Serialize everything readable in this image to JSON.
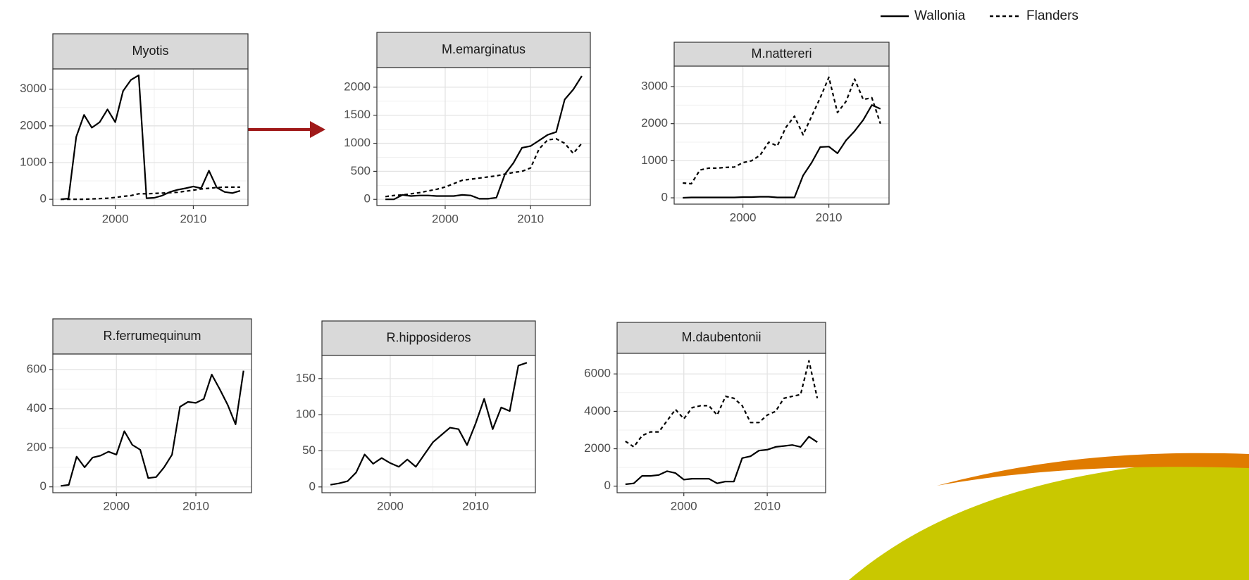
{
  "chart_data": [
    {
      "type": "line",
      "title": "Myotis",
      "x": [
        1993,
        1994,
        1995,
        1996,
        1997,
        1998,
        1999,
        2000,
        2001,
        2002,
        2003,
        2004,
        2005,
        2006,
        2007,
        2008,
        2009,
        2010,
        2011,
        2012,
        2013,
        2014,
        2015,
        2016
      ],
      "xlim": [
        1992,
        2017
      ],
      "xticks": [
        2000,
        2010
      ],
      "ylim": [
        -170,
        3550
      ],
      "yticks": [
        0,
        1000,
        2000,
        3000
      ],
      "grid": true,
      "series": [
        {
          "name": "Wallonia",
          "color": "#000000",
          "dash": "solid",
          "values": [
            0,
            20,
            1700,
            2300,
            1950,
            2100,
            2450,
            2100,
            2950,
            3250,
            3380,
            30,
            40,
            100,
            200,
            260,
            300,
            350,
            300,
            780,
            320,
            200,
            170,
            230
          ]
        },
        {
          "name": "Flanders",
          "color": "#000000",
          "dash": "dashed",
          "values": [
            0,
            0,
            0,
            0,
            10,
            20,
            30,
            50,
            80,
            100,
            150,
            150,
            160,
            170,
            180,
            190,
            220,
            250,
            280,
            300,
            320,
            330,
            330,
            330
          ]
        }
      ]
    },
    {
      "type": "line",
      "title": "M.emarginatus",
      "x": [
        1993,
        1994,
        1995,
        1996,
        1997,
        1998,
        1999,
        2000,
        2001,
        2002,
        2003,
        2004,
        2005,
        2006,
        2007,
        2008,
        2009,
        2010,
        2011,
        2012,
        2013,
        2014,
        2015,
        2016
      ],
      "xlim": [
        1992,
        2017
      ],
      "xticks": [
        2000,
        2010
      ],
      "ylim": [
        -110,
        2350
      ],
      "yticks": [
        0,
        500,
        1000,
        1500,
        2000
      ],
      "grid": true,
      "series": [
        {
          "name": "Wallonia",
          "color": "#000000",
          "dash": "solid",
          "values": [
            0,
            0,
            80,
            60,
            70,
            70,
            60,
            60,
            60,
            80,
            70,
            10,
            10,
            30,
            450,
            650,
            920,
            950,
            1050,
            1150,
            1200,
            1780,
            1960,
            2200
          ]
        },
        {
          "name": "Flanders",
          "color": "#000000",
          "dash": "dashed",
          "values": [
            50,
            70,
            80,
            100,
            120,
            150,
            180,
            220,
            280,
            340,
            360,
            380,
            400,
            420,
            450,
            480,
            500,
            560,
            900,
            1060,
            1080,
            1000,
            820,
            1000
          ]
        }
      ]
    },
    {
      "type": "line",
      "title": "M.nattereri",
      "x": [
        1993,
        1994,
        1995,
        1996,
        1997,
        1998,
        1999,
        2000,
        2001,
        2002,
        2003,
        2004,
        2005,
        2006,
        2007,
        2008,
        2009,
        2010,
        2011,
        2012,
        2013,
        2014,
        2015,
        2016
      ],
      "xlim": [
        1992,
        2017
      ],
      "xticks": [
        2000,
        2010
      ],
      "ylim": [
        -170,
        3550
      ],
      "yticks": [
        0,
        1000,
        2000,
        3000
      ],
      "grid": true,
      "series": [
        {
          "name": "Wallonia",
          "color": "#000000",
          "dash": "solid",
          "values": [
            0,
            10,
            10,
            10,
            10,
            10,
            10,
            20,
            20,
            30,
            30,
            10,
            10,
            10,
            600,
            950,
            1370,
            1380,
            1200,
            1550,
            1800,
            2100,
            2500,
            2400
          ]
        },
        {
          "name": "Flanders",
          "color": "#000000",
          "dash": "dashed",
          "values": [
            400,
            380,
            750,
            800,
            800,
            820,
            830,
            950,
            1000,
            1150,
            1500,
            1400,
            1900,
            2200,
            1700,
            2200,
            2700,
            3250,
            2300,
            2600,
            3200,
            2650,
            2700,
            2000
          ]
        }
      ]
    },
    {
      "type": "line",
      "title": "R.ferrumequinum",
      "x": [
        1993,
        1994,
        1995,
        1996,
        1997,
        1998,
        1999,
        2000,
        2001,
        2002,
        2003,
        2004,
        2005,
        2006,
        2007,
        2008,
        2009,
        2010,
        2011,
        2012,
        2013,
        2014,
        2015,
        2016
      ],
      "xlim": [
        1992,
        2017
      ],
      "xticks": [
        2000,
        2010
      ],
      "ylim": [
        -30,
        680
      ],
      "yticks": [
        0,
        200,
        400,
        600
      ],
      "grid": true,
      "series": [
        {
          "name": "Wallonia",
          "color": "#000000",
          "dash": "solid",
          "values": [
            5,
            10,
            155,
            100,
            150,
            160,
            180,
            165,
            285,
            215,
            190,
            45,
            50,
            100,
            165,
            410,
            435,
            430,
            450,
            575,
            500,
            420,
            320,
            595
          ]
        }
      ]
    },
    {
      "type": "line",
      "title": "R.hipposideros",
      "x": [
        1993,
        1994,
        1995,
        1996,
        1997,
        1998,
        1999,
        2000,
        2001,
        2002,
        2003,
        2004,
        2005,
        2006,
        2007,
        2008,
        2009,
        2010,
        2011,
        2012,
        2013,
        2014,
        2015,
        2016
      ],
      "xlim": [
        1992,
        2017
      ],
      "xticks": [
        2000,
        2010
      ],
      "ylim": [
        -8,
        182
      ],
      "yticks": [
        0,
        50,
        100,
        150
      ],
      "grid": true,
      "series": [
        {
          "name": "Wallonia",
          "color": "#000000",
          "dash": "solid",
          "values": [
            3,
            5,
            8,
            20,
            45,
            32,
            40,
            33,
            28,
            38,
            28,
            45,
            62,
            72,
            82,
            80,
            58,
            88,
            122,
            80,
            110,
            105,
            168,
            172
          ]
        }
      ]
    },
    {
      "type": "line",
      "title": "M.daubentonii",
      "x": [
        1993,
        1994,
        1995,
        1996,
        1997,
        1998,
        1999,
        2000,
        2001,
        2002,
        2003,
        2004,
        2005,
        2006,
        2007,
        2008,
        2009,
        2010,
        2011,
        2012,
        2013,
        2014,
        2015,
        2016
      ],
      "xlim": [
        1992,
        2017
      ],
      "xticks": [
        2000,
        2010
      ],
      "ylim": [
        -350,
        7100
      ],
      "yticks": [
        0,
        2000,
        4000,
        6000
      ],
      "grid": true,
      "series": [
        {
          "name": "Wallonia",
          "color": "#000000",
          "dash": "solid",
          "values": [
            100,
            150,
            550,
            550,
            600,
            800,
            700,
            350,
            400,
            400,
            400,
            150,
            250,
            250,
            1500,
            1600,
            1900,
            1950,
            2100,
            2150,
            2200,
            2100,
            2650,
            2350
          ]
        },
        {
          "name": "Flanders",
          "color": "#000000",
          "dash": "dashed",
          "values": [
            2400,
            2100,
            2700,
            2900,
            2900,
            3500,
            4100,
            3600,
            4200,
            4300,
            4300,
            3800,
            4800,
            4700,
            4300,
            3400,
            3400,
            3800,
            4000,
            4700,
            4800,
            4900,
            6700,
            4700
          ]
        }
      ]
    }
  ]
}
